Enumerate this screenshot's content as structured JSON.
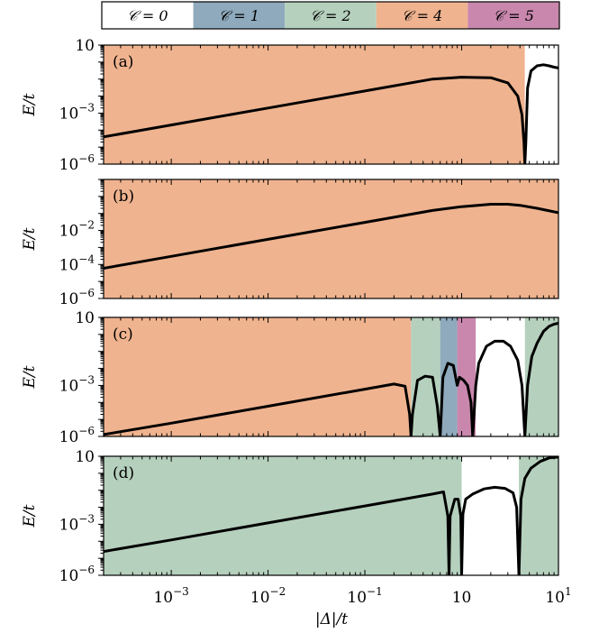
{
  "colors": {
    "C0": "#ffffff",
    "C1": "#8eaabc",
    "C2": "#b5d0bd",
    "C4": "#efb38f",
    "C5": "#c987ad",
    "curve": "#000000"
  },
  "legend": [
    {
      "key": "C0",
      "label": "𝒞 = 0"
    },
    {
      "key": "C1",
      "label": "𝒞 = 1"
    },
    {
      "key": "C2",
      "label": "𝒞 = 2"
    },
    {
      "key": "C4",
      "label": "𝒞 = 4"
    },
    {
      "key": "C5",
      "label": "𝒞 = 5"
    }
  ],
  "xlabel": "|Δ|/t",
  "ylabel": "E/t",
  "x_ticks": [
    {
      "value": 0.001,
      "label": "10",
      "exp": "−3"
    },
    {
      "value": 0.01,
      "label": "10",
      "exp": "−2"
    },
    {
      "value": 0.1,
      "label": "10",
      "exp": "−1"
    },
    {
      "value": 1,
      "label": "10",
      "exp": ""
    },
    {
      "value": 10,
      "label": "10",
      "exp": "1"
    }
  ],
  "chart_data": [
    {
      "type": "line",
      "panel": "(a)",
      "xscale": "log",
      "yscale": "log",
      "xlim": [
        0.0002,
        10
      ],
      "ylim": [
        1e-06,
        10
      ],
      "y_ticks": [
        {
          "value": 10,
          "label": "10",
          "exp": ""
        },
        {
          "value": 0.001,
          "label": "10",
          "exp": "−3"
        },
        {
          "value": 1e-06,
          "label": "10",
          "exp": "−6"
        }
      ],
      "regions": [
        {
          "from": 0.0002,
          "to": 4.5,
          "phase": "C4"
        },
        {
          "from": 4.5,
          "to": 10,
          "phase": "C0"
        }
      ],
      "curve": {
        "x": [
          0.0002,
          0.001,
          0.01,
          0.1,
          0.5,
          1,
          2,
          3,
          3.8,
          4.2,
          4.4,
          4.5,
          4.6,
          4.8,
          5.2,
          6,
          7,
          8,
          9,
          10
        ],
        "y": [
          4e-05,
          0.0002,
          0.002,
          0.02,
          0.1,
          0.13,
          0.12,
          0.06,
          0.01,
          0.0008,
          2e-05,
          1e-06,
          2e-05,
          0.03,
          0.3,
          0.6,
          0.7,
          0.6,
          0.5,
          0.45
        ]
      }
    },
    {
      "type": "line",
      "panel": "(b)",
      "xscale": "log",
      "yscale": "log",
      "xlim": [
        0.0002,
        10
      ],
      "ylim": [
        1e-06,
        10
      ],
      "y_ticks": [
        {
          "value": 0.01,
          "label": "10",
          "exp": "−2"
        },
        {
          "value": 0.0001,
          "label": "10",
          "exp": "−4"
        },
        {
          "value": 1e-06,
          "label": "10",
          "exp": "−6"
        }
      ],
      "regions": [
        {
          "from": 0.0002,
          "to": 10,
          "phase": "C4"
        }
      ],
      "curve": {
        "x": [
          0.0002,
          0.001,
          0.01,
          0.1,
          0.5,
          1,
          2,
          3,
          4,
          6,
          10
        ],
        "y": [
          6e-05,
          0.0003,
          0.003,
          0.03,
          0.15,
          0.25,
          0.35,
          0.35,
          0.3,
          0.2,
          0.11
        ]
      }
    },
    {
      "type": "line",
      "panel": "(c)",
      "xscale": "log",
      "yscale": "log",
      "xlim": [
        0.0002,
        10
      ],
      "ylim": [
        1e-06,
        10
      ],
      "y_ticks": [
        {
          "value": 10,
          "label": "10",
          "exp": ""
        },
        {
          "value": 0.001,
          "label": "10",
          "exp": "−3"
        },
        {
          "value": 1e-06,
          "label": "10",
          "exp": "−6"
        }
      ],
      "regions": [
        {
          "from": 0.0002,
          "to": 0.3,
          "phase": "C4"
        },
        {
          "from": 0.3,
          "to": 0.6,
          "phase": "C2"
        },
        {
          "from": 0.6,
          "to": 0.9,
          "phase": "C1"
        },
        {
          "from": 0.9,
          "to": 1.4,
          "phase": "C5"
        },
        {
          "from": 1.4,
          "to": 4.5,
          "phase": "C0"
        },
        {
          "from": 4.5,
          "to": 10,
          "phase": "C2"
        }
      ],
      "curve": {
        "x": [
          0.0002,
          0.001,
          0.01,
          0.1,
          0.2,
          0.26,
          0.29,
          0.3,
          0.31,
          0.35,
          0.42,
          0.5,
          0.56,
          0.6,
          0.64,
          0.72,
          0.82,
          0.9,
          0.95,
          1.05,
          1.15,
          1.25,
          1.3,
          1.4,
          1.5,
          1.8,
          2.2,
          2.7,
          3.2,
          3.8,
          4.2,
          4.5,
          4.8,
          5.3,
          6,
          7,
          8,
          9,
          10
        ],
        "y": [
          1.3e-06,
          6e-06,
          6e-05,
          0.0006,
          0.0012,
          0.0009,
          2e-05,
          1e-06,
          2e-05,
          0.002,
          0.0035,
          0.003,
          6e-05,
          1e-06,
          0.003,
          0.02,
          0.015,
          0.001,
          0.003,
          0.002,
          0.001,
          0.0001,
          1e-06,
          0.001,
          0.02,
          0.2,
          0.4,
          0.4,
          0.2,
          0.03,
          0.001,
          1e-06,
          0.001,
          0.05,
          0.3,
          1.5,
          3,
          4,
          4.5
        ]
      }
    },
    {
      "type": "line",
      "panel": "(d)",
      "xscale": "log",
      "yscale": "log",
      "xlim": [
        0.0002,
        10
      ],
      "ylim": [
        1e-06,
        10
      ],
      "y_ticks": [
        {
          "value": 10,
          "label": "10",
          "exp": ""
        },
        {
          "value": 0.001,
          "label": "10",
          "exp": "−3"
        },
        {
          "value": 1e-06,
          "label": "10",
          "exp": "−6"
        }
      ],
      "regions": [
        {
          "from": 0.0002,
          "to": 1.0,
          "phase": "C2"
        },
        {
          "from": 1.0,
          "to": 3.9,
          "phase": "C0"
        },
        {
          "from": 3.9,
          "to": 10,
          "phase": "C2"
        }
      ],
      "curve": {
        "x": [
          0.0002,
          0.001,
          0.01,
          0.1,
          0.5,
          0.65,
          0.72,
          0.74,
          0.76,
          0.85,
          0.92,
          0.98,
          1.0,
          1.03,
          1.1,
          1.3,
          1.7,
          2.2,
          2.8,
          3.4,
          3.7,
          3.9,
          4.1,
          4.5,
          5.2,
          6.5,
          8,
          10
        ],
        "y": [
          2.5e-05,
          0.00012,
          0.0012,
          0.012,
          0.06,
          0.08,
          0.003,
          1e-06,
          0.003,
          0.03,
          0.03,
          0.003,
          1e-06,
          0.004,
          0.03,
          0.06,
          0.12,
          0.15,
          0.13,
          0.07,
          0.01,
          1e-06,
          0.03,
          0.5,
          2,
          5,
          8,
          9
        ]
      }
    }
  ]
}
